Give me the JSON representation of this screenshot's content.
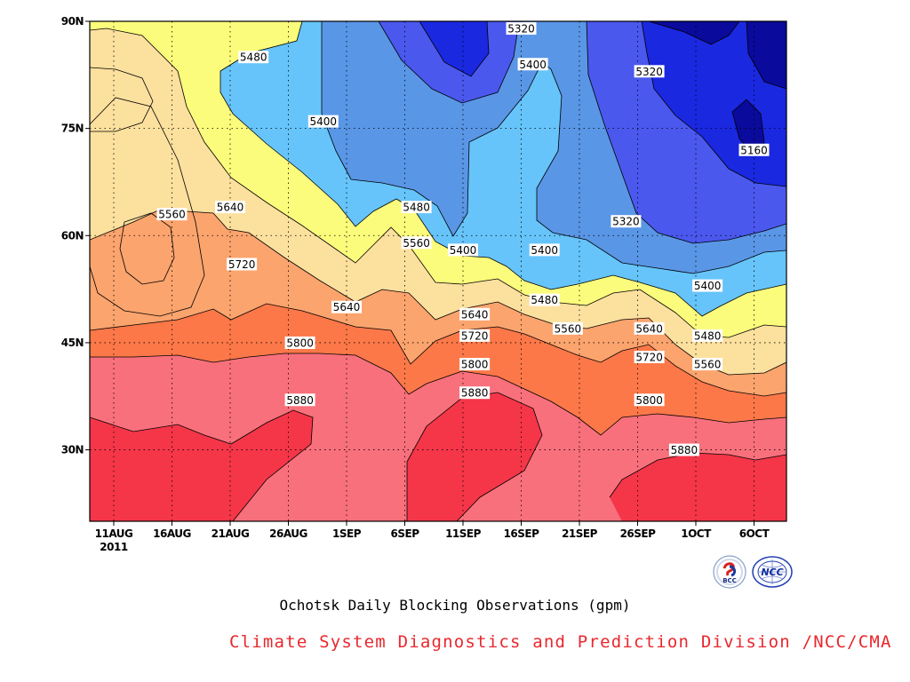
{
  "chart_data": {
    "type": "contour",
    "title": "Ochotsk Daily Blocking Observations (gpm)",
    "xlabel": "",
    "ylabel": "",
    "x_ticks": [
      "11AUG",
      "16AUG",
      "21AUG",
      "26AUG",
      "1SEP",
      "6SEP",
      "11SEP",
      "16SEP",
      "21SEP",
      "26SEP",
      "1OCT",
      "6OCT"
    ],
    "x_year": "2011",
    "y_ticks": [
      "30N",
      "45N",
      "60N",
      "75N",
      "90N"
    ],
    "ylim": [
      20,
      90
    ],
    "contour_levels": [
      5160,
      5240,
      5320,
      5400,
      5480,
      5560,
      5640,
      5720,
      5800,
      5880
    ],
    "contour_labels": [
      {
        "text": "5320",
        "date": "15SEP",
        "lat": 89
      },
      {
        "text": "5400",
        "date": "16SEP",
        "lat": 84
      },
      {
        "text": "5480",
        "date": "23AUG",
        "lat": 85
      },
      {
        "text": "5320",
        "date": "26SEP",
        "lat": 83
      },
      {
        "text": "5400",
        "date": "29AUG",
        "lat": 76
      },
      {
        "text": "5160",
        "date": "5OCT",
        "lat": 72
      },
      {
        "text": "5560",
        "date": "16AUG",
        "lat": 63
      },
      {
        "text": "5640",
        "date": "21AUG",
        "lat": 64
      },
      {
        "text": "5480",
        "date": "6SEP",
        "lat": 64
      },
      {
        "text": "5320",
        "date": "24SEP",
        "lat": 62
      },
      {
        "text": "5560",
        "date": "6SEP",
        "lat": 59
      },
      {
        "text": "5400",
        "date": "10SEP",
        "lat": 58
      },
      {
        "text": "5400",
        "date": "17SEP",
        "lat": 58
      },
      {
        "text": "5720",
        "date": "22AUG",
        "lat": 56
      },
      {
        "text": "5400",
        "date": "1OCT",
        "lat": 53
      },
      {
        "text": "5480",
        "date": "17SEP",
        "lat": 51
      },
      {
        "text": "5640",
        "date": "31AUG",
        "lat": 50
      },
      {
        "text": "5640",
        "date": "11SEP",
        "lat": 49
      },
      {
        "text": "5560",
        "date": "19SEP",
        "lat": 47
      },
      {
        "text": "5640",
        "date": "26SEP",
        "lat": 47
      },
      {
        "text": "5720",
        "date": "11SEP",
        "lat": 46
      },
      {
        "text": "5480",
        "date": "1OCT",
        "lat": 46
      },
      {
        "text": "5800",
        "date": "27AUG",
        "lat": 45
      },
      {
        "text": "5720",
        "date": "26SEP",
        "lat": 43
      },
      {
        "text": "5800",
        "date": "11SEP",
        "lat": 42
      },
      {
        "text": "5560",
        "date": "1OCT",
        "lat": 42
      },
      {
        "text": "5880",
        "date": "11SEP",
        "lat": 38
      },
      {
        "text": "5880",
        "date": "27AUG",
        "lat": 37
      },
      {
        "text": "5800",
        "date": "26SEP",
        "lat": 37
      },
      {
        "text": "5880",
        "date": "29SEP",
        "lat": 30
      }
    ],
    "grid": true,
    "colors": {
      "5160": "#0a0a9c",
      "5240": "#1a28e0",
      "5320": "#4a58ee",
      "5400": "#5a96e6",
      "5480": "#66c4fa",
      "5560": "#fcfc7c",
      "5640": "#fce09e",
      "5720": "#fca46e",
      "5800": "#fc7848",
      "5880": "#f8707c",
      "above": "#f43648"
    }
  },
  "caption": "Ochotsk Daily Blocking Observations (gpm)",
  "credit": "Climate System Diagnostics and Prediction Division /NCC/CMA",
  "logos": {
    "left": "BCC",
    "right": "NCC"
  }
}
